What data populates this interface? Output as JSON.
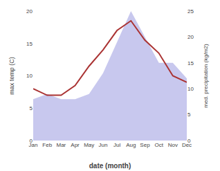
{
  "chart_data": {
    "type": "line",
    "xlabel": "date (month)",
    "ylabel": "max temp (C)",
    "y2label": "med. precipitation (kg/m2)",
    "categories": [
      "Jan",
      "Feb",
      "Mar",
      "Apr",
      "May",
      "Jun",
      "Jul",
      "Aug",
      "Sep",
      "Oct",
      "Nov",
      "Dec"
    ],
    "series": [
      {
        "type": "area",
        "color": "#c8c8ee",
        "axis": "y2",
        "values": [
          8.0,
          9.0,
          8.0,
          8.0,
          9.0,
          13.0,
          19.0,
          25.0,
          20.0,
          15.0,
          15.0,
          12.0
        ]
      },
      {
        "type": "line",
        "color": "#aa3333",
        "values": [
          8.0,
          7.0,
          7.0,
          8.5,
          11.5,
          14.0,
          17.0,
          18.5,
          15.5,
          13.5,
          10.0,
          9.0
        ]
      }
    ],
    "ylim": [
      0,
      20
    ],
    "yticks": [
      0,
      5,
      10,
      15,
      20
    ],
    "y2lim": [
      0,
      25
    ],
    "y2ticks": [
      0,
      5,
      10,
      15,
      20,
      25
    ],
    "grid": false
  }
}
